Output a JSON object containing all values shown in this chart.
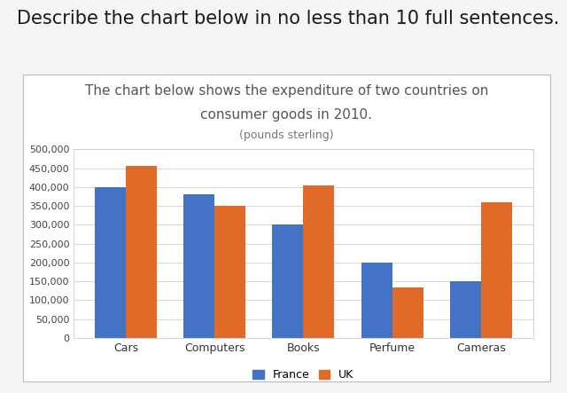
{
  "title_line1": "The chart below shows the expenditure of two countries on",
  "title_line2": "consumer goods in 2010.",
  "title_line3": "(pounds sterling)",
  "heading": "Describe the chart below in no less than 10 full sentences.",
  "categories": [
    "Cars",
    "Computers",
    "Books",
    "Perfume",
    "Cameras"
  ],
  "france_values": [
    400000,
    380000,
    300000,
    200000,
    150000
  ],
  "uk_values": [
    455000,
    350000,
    405000,
    135000,
    360000
  ],
  "france_color": "#4472C4",
  "uk_color": "#E06B28",
  "ylim": [
    0,
    500000
  ],
  "yticks": [
    0,
    50000,
    100000,
    150000,
    200000,
    250000,
    300000,
    350000,
    400000,
    450000,
    500000
  ],
  "ytick_labels": [
    "0",
    "50,000",
    "100,000",
    "150,000",
    "200,000",
    "250,000",
    "300,000",
    "350,000",
    "400,000",
    "450,000",
    "500,000"
  ],
  "bar_width": 0.35,
  "legend_france": "France",
  "legend_uk": "UK",
  "background_color": "#f5f5f5",
  "chart_bg_color": "#ffffff",
  "heading_fontsize": 15,
  "title_fontsize": 11,
  "subtitle_fontsize": 9,
  "tick_fontsize": 8,
  "legend_fontsize": 9,
  "grid_color": "#d8d8d8",
  "box_color": "#bbbbbb"
}
